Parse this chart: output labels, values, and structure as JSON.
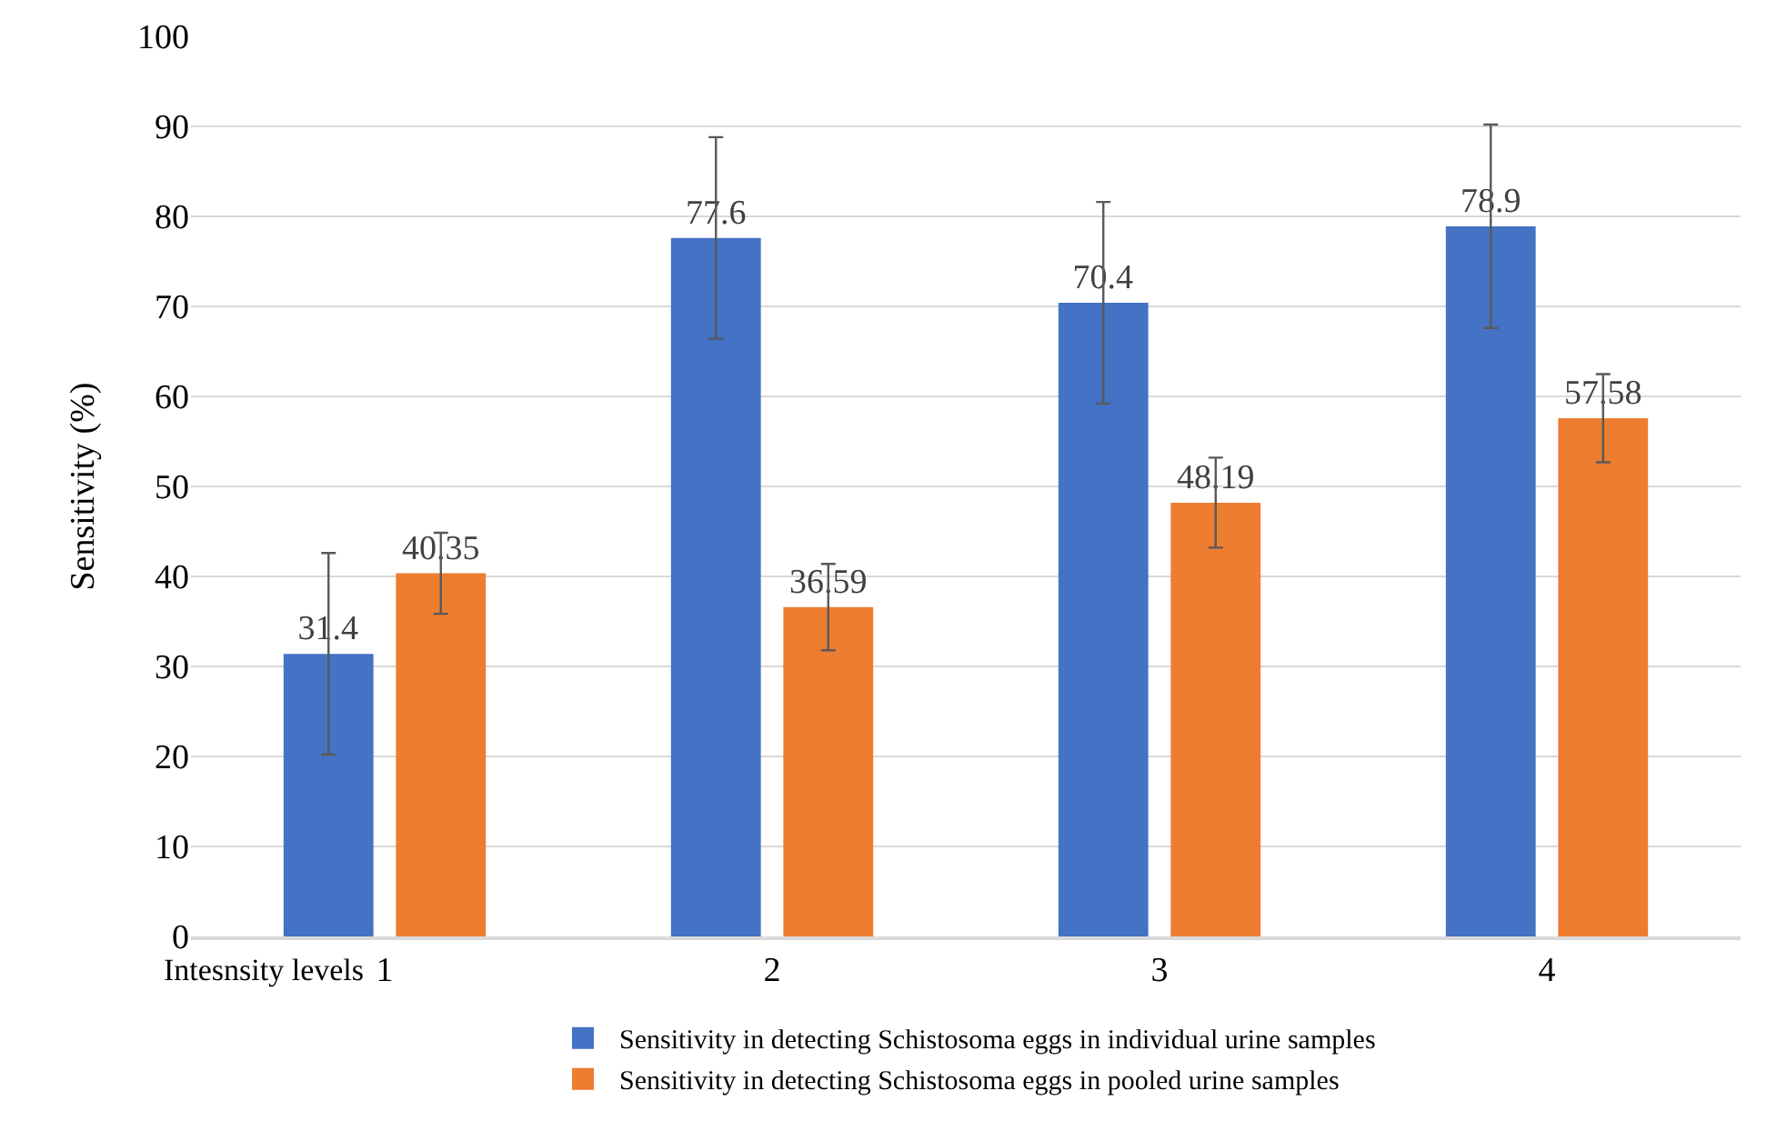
{
  "chart_data": {
    "type": "bar",
    "xlabel": "Intesnsity levels",
    "ylabel": "Sensitivity (%)",
    "categories": [
      "1",
      "2",
      "3",
      "4"
    ],
    "series": [
      {
        "name": "Sensitivity in detecting Schistosoma eggs in individual urine samples",
        "color": "#4472c4",
        "values": [
          31.4,
          77.6,
          70.4,
          78.9
        ],
        "errors": [
          11.2,
          11.2,
          11.2,
          11.3
        ]
      },
      {
        "name": "Sensitivity in detecting Schistosoma eggs in pooled urine samples",
        "color": "#ed7d31",
        "values": [
          40.35,
          36.59,
          48.19,
          57.58
        ],
        "errors": [
          4.5,
          4.8,
          5,
          4.9
        ]
      }
    ],
    "ylim": [
      0,
      100
    ],
    "yticks": [
      0,
      10,
      20,
      30,
      40,
      50,
      60,
      70,
      80,
      90,
      100
    ],
    "grid": "y",
    "legend": "bottom",
    "data_labels": true
  }
}
